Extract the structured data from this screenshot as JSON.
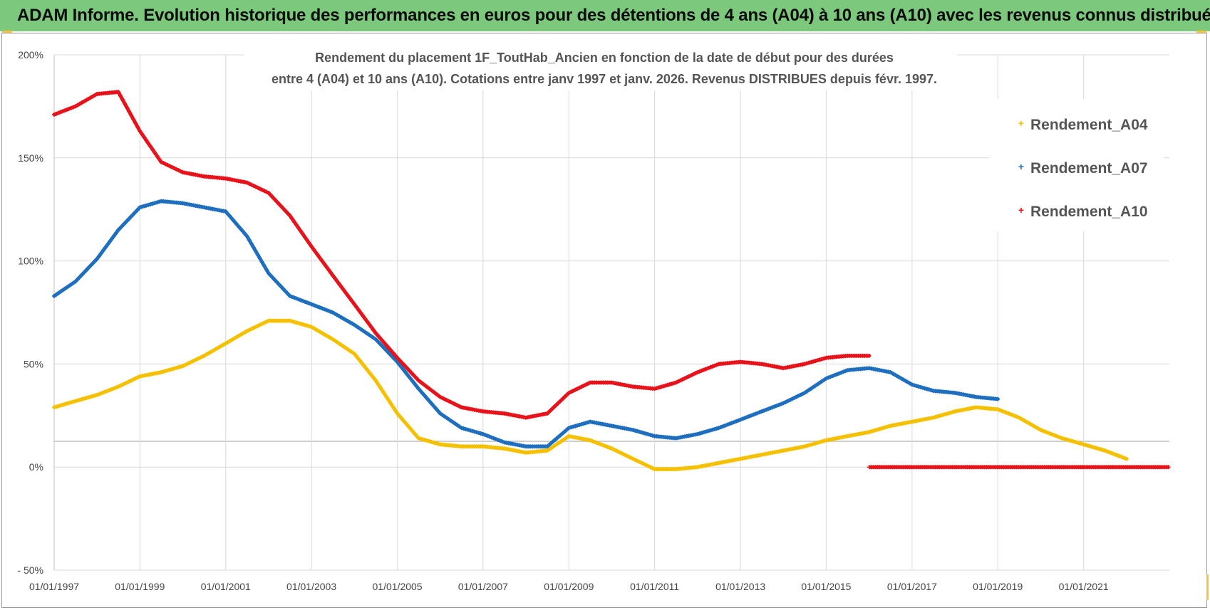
{
  "header": {
    "title": "ADAM Informe. Evolution historique des performances en euros pour des détentions de 4 ans (A04) à 10 ans (A10) avec les revenus connus distribués",
    "background_color": "#7cc87c"
  },
  "chart_data": {
    "type": "scatter",
    "title_line1": "Rendement du placement 1F_ToutHab_Ancien en fonction de la date de début pour des durées",
    "title_line2": "entre 4 (A04) et 10 ans (A10).  Cotations entre janv 1997 et janv. 2026. Revenus DISTRIBUES depuis févr. 1997.",
    "x_ticks": [
      "01/01/1997",
      "01/01/1999",
      "01/01/2001",
      "01/01/2003",
      "01/01/2005",
      "01/01/2007",
      "01/01/2009",
      "01/01/2011",
      "01/01/2013",
      "01/01/2015",
      "01/01/2017",
      "01/01/2019",
      "01/01/2021"
    ],
    "xlim": [
      "1997-01-01",
      "2023-01-01"
    ],
    "y_ticks": [
      "200%",
      "150%",
      "100%",
      "50%",
      "0%",
      "- 50%"
    ],
    "ylim": [
      -50,
      200
    ],
    "grid": true,
    "legend_position": "top-right",
    "marker": "+",
    "series": [
      {
        "name": "Rendement_A04",
        "color": "#f5c000",
        "points": [
          [
            "1997-01",
            29
          ],
          [
            "1997-07",
            32
          ],
          [
            "1998-01",
            35
          ],
          [
            "1998-07",
            39
          ],
          [
            "1999-01",
            44
          ],
          [
            "1999-07",
            46
          ],
          [
            "2000-01",
            49
          ],
          [
            "2000-07",
            54
          ],
          [
            "2001-01",
            60
          ],
          [
            "2001-07",
            66
          ],
          [
            "2002-01",
            71
          ],
          [
            "2002-07",
            71
          ],
          [
            "2003-01",
            68
          ],
          [
            "2003-07",
            62
          ],
          [
            "2004-01",
            55
          ],
          [
            "2004-07",
            42
          ],
          [
            "2005-01",
            26
          ],
          [
            "2005-07",
            14
          ],
          [
            "2006-01",
            11
          ],
          [
            "2006-07",
            10
          ],
          [
            "2007-01",
            10
          ],
          [
            "2007-07",
            9
          ],
          [
            "2008-01",
            7
          ],
          [
            "2008-07",
            8
          ],
          [
            "2009-01",
            15
          ],
          [
            "2009-07",
            13
          ],
          [
            "2010-01",
            9
          ],
          [
            "2010-07",
            4
          ],
          [
            "2011-01",
            -1
          ],
          [
            "2011-07",
            -1
          ],
          [
            "2012-01",
            0
          ],
          [
            "2012-07",
            2
          ],
          [
            "2013-01",
            4
          ],
          [
            "2013-07",
            6
          ],
          [
            "2014-01",
            8
          ],
          [
            "2014-07",
            10
          ],
          [
            "2015-01",
            13
          ],
          [
            "2015-07",
            15
          ],
          [
            "2016-01",
            17
          ],
          [
            "2016-07",
            20
          ],
          [
            "2017-01",
            22
          ],
          [
            "2017-07",
            24
          ],
          [
            "2018-01",
            27
          ],
          [
            "2018-07",
            29
          ],
          [
            "2019-01",
            28
          ],
          [
            "2019-07",
            24
          ],
          [
            "2020-01",
            18
          ],
          [
            "2020-07",
            14
          ],
          [
            "2021-01",
            11
          ],
          [
            "2021-07",
            8
          ],
          [
            "2022-01",
            4
          ]
        ]
      },
      {
        "name": "Rendement_A07",
        "color": "#1f6fbf",
        "points": [
          [
            "1997-01",
            83
          ],
          [
            "1997-07",
            90
          ],
          [
            "1998-01",
            101
          ],
          [
            "1998-07",
            115
          ],
          [
            "1999-01",
            126
          ],
          [
            "1999-07",
            129
          ],
          [
            "2000-01",
            128
          ],
          [
            "2000-07",
            126
          ],
          [
            "2001-01",
            124
          ],
          [
            "2001-07",
            112
          ],
          [
            "2002-01",
            94
          ],
          [
            "2002-07",
            83
          ],
          [
            "2003-01",
            79
          ],
          [
            "2003-07",
            75
          ],
          [
            "2004-01",
            69
          ],
          [
            "2004-07",
            62
          ],
          [
            "2005-01",
            51
          ],
          [
            "2005-07",
            38
          ],
          [
            "2006-01",
            26
          ],
          [
            "2006-07",
            19
          ],
          [
            "2007-01",
            16
          ],
          [
            "2007-07",
            12
          ],
          [
            "2008-01",
            10
          ],
          [
            "2008-07",
            10
          ],
          [
            "2009-01",
            19
          ],
          [
            "2009-07",
            22
          ],
          [
            "2010-01",
            20
          ],
          [
            "2010-07",
            18
          ],
          [
            "2011-01",
            15
          ],
          [
            "2011-07",
            14
          ],
          [
            "2012-01",
            16
          ],
          [
            "2012-07",
            19
          ],
          [
            "2013-01",
            23
          ],
          [
            "2013-07",
            27
          ],
          [
            "2014-01",
            31
          ],
          [
            "2014-07",
            36
          ],
          [
            "2015-01",
            43
          ],
          [
            "2015-07",
            47
          ],
          [
            "2016-01",
            48
          ],
          [
            "2016-07",
            46
          ],
          [
            "2017-01",
            40
          ],
          [
            "2017-07",
            37
          ],
          [
            "2018-01",
            36
          ],
          [
            "2018-07",
            34
          ],
          [
            "2019-01",
            33
          ]
        ]
      },
      {
        "name": "Rendement_A10",
        "color": "#e8121a",
        "points": [
          [
            "1997-01",
            171
          ],
          [
            "1997-07",
            175
          ],
          [
            "1998-01",
            181
          ],
          [
            "1998-07",
            182
          ],
          [
            "1999-01",
            163
          ],
          [
            "1999-07",
            148
          ],
          [
            "2000-01",
            143
          ],
          [
            "2000-07",
            141
          ],
          [
            "2001-01",
            140
          ],
          [
            "2001-07",
            138
          ],
          [
            "2002-01",
            133
          ],
          [
            "2002-07",
            122
          ],
          [
            "2003-01",
            107
          ],
          [
            "2003-07",
            93
          ],
          [
            "2004-01",
            79
          ],
          [
            "2004-07",
            65
          ],
          [
            "2005-01",
            53
          ],
          [
            "2005-07",
            42
          ],
          [
            "2006-01",
            34
          ],
          [
            "2006-07",
            29
          ],
          [
            "2007-01",
            27
          ],
          [
            "2007-07",
            26
          ],
          [
            "2008-01",
            24
          ],
          [
            "2008-07",
            26
          ],
          [
            "2009-01",
            36
          ],
          [
            "2009-07",
            41
          ],
          [
            "2010-01",
            41
          ],
          [
            "2010-07",
            39
          ],
          [
            "2011-01",
            38
          ],
          [
            "2011-07",
            41
          ],
          [
            "2012-01",
            46
          ],
          [
            "2012-07",
            50
          ],
          [
            "2013-01",
            51
          ],
          [
            "2013-07",
            50
          ],
          [
            "2014-01",
            48
          ],
          [
            "2014-07",
            50
          ],
          [
            "2015-01",
            53
          ],
          [
            "2015-07",
            54
          ],
          [
            "2016-01",
            54
          ]
        ],
        "tail_zero": [
          "2016-01",
          "2023-01",
          0
        ]
      }
    ]
  }
}
